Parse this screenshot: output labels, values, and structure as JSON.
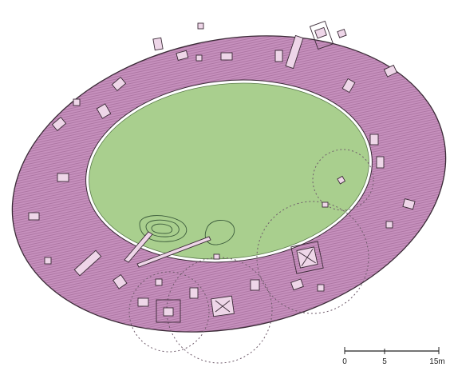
{
  "colors": {
    "ring_fill": "#c690bd",
    "ring_hatch": "#a8709e",
    "arena_fill": "#a9cf8e",
    "outline": "#3a2a36",
    "circle_stroke": "#6e5a6a",
    "object_fill": "#eed6e8"
  },
  "scale_bar": {
    "labels": [
      "0",
      "5",
      "15m"
    ]
  }
}
